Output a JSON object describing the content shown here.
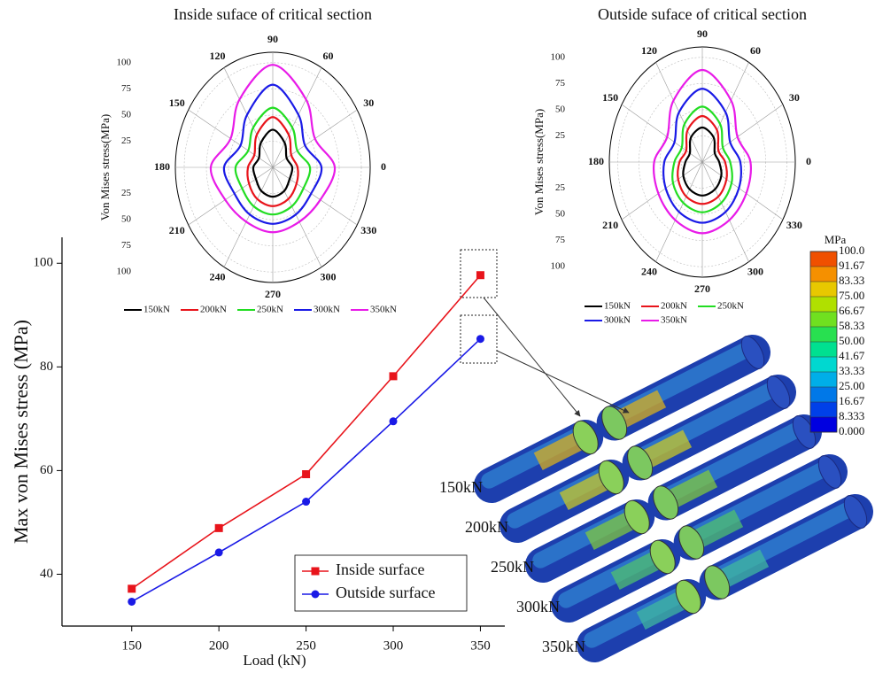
{
  "chart_data": [
    {
      "type": "line",
      "xlabel": "Load (kN)",
      "ylabel": "Max von Mises stress (MPa)",
      "x": [
        150,
        200,
        250,
        300,
        350
      ],
      "xlim": [
        110,
        364
      ],
      "xticks": [
        150,
        200,
        250,
        300,
        350
      ],
      "ylim": [
        30,
        105
      ],
      "yticks": [
        40,
        60,
        80,
        100
      ],
      "legend": "lower right",
      "series": [
        {
          "name": "Inside surface",
          "color": "#e8141b",
          "marker": "square",
          "values": [
            37.2,
            48.9,
            59.3,
            78.2,
            97.7
          ]
        },
        {
          "name": "Outside surface",
          "color": "#1a1ae6",
          "marker": "circle",
          "values": [
            34.7,
            44.2,
            54.0,
            69.5,
            85.4
          ]
        }
      ]
    },
    {
      "type": "polar",
      "title": "Inside suface of critical section",
      "rlabel": "Von Mises stress(MPa)",
      "theta": [
        0,
        30,
        60,
        90,
        120,
        150,
        180,
        210,
        240,
        270,
        300,
        330
      ],
      "thetaticks": [
        0,
        30,
        60,
        90,
        120,
        150,
        180,
        210,
        240,
        270,
        300,
        330
      ],
      "rlim": [
        0,
        110
      ],
      "rticks": [
        25,
        50,
        75,
        100
      ],
      "series": [
        {
          "name": "150kN",
          "color": "#000000",
          "values": [
            22,
            18,
            27,
            36,
            27,
            18,
            22,
            22,
            26,
            28,
            26,
            22
          ]
        },
        {
          "name": "200kN",
          "color": "#e8141b",
          "values": [
            28,
            24,
            36,
            48,
            36,
            24,
            28,
            31,
            35,
            37,
            35,
            31
          ]
        },
        {
          "name": "250kN",
          "color": "#22dd22",
          "values": [
            42,
            32,
            44,
            57,
            44,
            32,
            42,
            40,
            43,
            45,
            43,
            40
          ]
        },
        {
          "name": "300kN",
          "color": "#1a1ae6",
          "values": [
            55,
            42,
            58,
            79,
            58,
            42,
            55,
            50,
            52,
            54,
            52,
            50
          ]
        },
        {
          "name": "350kN",
          "color": "#e81be8",
          "values": [
            70,
            55,
            75,
            98,
            75,
            55,
            70,
            62,
            60,
            62,
            60,
            62
          ]
        }
      ]
    },
    {
      "type": "polar",
      "title": "Outside suface of critical section",
      "rlabel": "Von Mises stress(MPa)",
      "theta": [
        0,
        30,
        60,
        90,
        120,
        150,
        180,
        210,
        240,
        270,
        300,
        330
      ],
      "thetaticks": [
        0,
        30,
        60,
        90,
        120,
        150,
        180,
        210,
        240,
        270,
        300,
        330
      ],
      "rlim": [
        0,
        110
      ],
      "rticks": [
        25,
        50,
        75,
        100
      ],
      "series": [
        {
          "name": "150kN",
          "color": "#000000",
          "values": [
            20,
            17,
            27,
            33,
            27,
            17,
            20,
            26,
            30,
            32,
            30,
            26
          ]
        },
        {
          "name": "200kN",
          "color": "#e8141b",
          "values": [
            27,
            22,
            35,
            44,
            35,
            22,
            27,
            33,
            38,
            40,
            38,
            33
          ]
        },
        {
          "name": "250kN",
          "color": "#22dd22",
          "values": [
            33,
            28,
            42,
            53,
            42,
            28,
            33,
            40,
            45,
            48,
            45,
            40
          ]
        },
        {
          "name": "300kN",
          "color": "#1a1ae6",
          "values": [
            45,
            38,
            55,
            70,
            55,
            38,
            45,
            50,
            55,
            58,
            55,
            50
          ]
        },
        {
          "name": "350kN",
          "color": "#e81be8",
          "values": [
            57,
            48,
            68,
            88,
            68,
            48,
            57,
            60,
            64,
            68,
            64,
            60
          ]
        }
      ]
    },
    {
      "type": "colorbar",
      "unit": "MPa",
      "lim": [
        0,
        100
      ],
      "ticks": [
        {
          "value": 100,
          "label": "100.0"
        },
        {
          "value": 91.67,
          "label": "91.67"
        },
        {
          "value": 83.33,
          "label": "83.33"
        },
        {
          "value": 75,
          "label": "75.00"
        },
        {
          "value": 66.67,
          "label": "66.67"
        },
        {
          "value": 58.33,
          "label": "58.33"
        },
        {
          "value": 50,
          "label": "50.00"
        },
        {
          "value": 41.67,
          "label": "41.67"
        },
        {
          "value": 33.33,
          "label": "33.33"
        },
        {
          "value": 25,
          "label": "25.00"
        },
        {
          "value": 16.67,
          "label": "16.67"
        },
        {
          "value": 8.333,
          "label": "8.333"
        },
        {
          "value": 0,
          "label": "0.000"
        }
      ],
      "colors": [
        "#0000e0",
        "#0040e8",
        "#0078e8",
        "#00aee8",
        "#00d8d0",
        "#00e090",
        "#28e050",
        "#70e020",
        "#b0e000",
        "#e8c800",
        "#f59000",
        "#f05000",
        "#e00000"
      ]
    }
  ],
  "figure": {
    "pipe_labels": [
      "150kN",
      "200kN",
      "250kN",
      "300kN",
      "350kN"
    ]
  }
}
